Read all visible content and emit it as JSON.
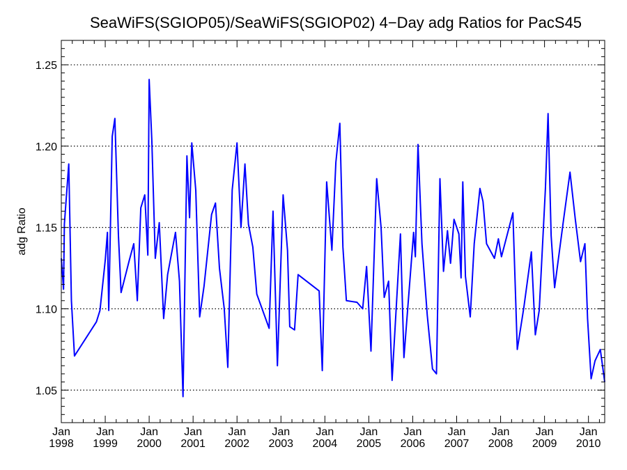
{
  "chart_data": {
    "type": "line",
    "title": "SeaWiFS(SGIOP05)/SeaWiFS(SGIOP02) 4−Day adg Ratios for PacS45",
    "xlabel": "",
    "ylabel": "adg Ratio",
    "xlim": [
      1998.0,
      2010.37
    ],
    "ylim": [
      1.03,
      1.265
    ],
    "yticks": [
      1.05,
      1.1,
      1.15,
      1.2,
      1.25
    ],
    "ytick_labels": [
      "1.05",
      "1.10",
      "1.15",
      "1.20",
      "1.25"
    ],
    "xticks": [
      1998,
      1999,
      2000,
      2001,
      2002,
      2003,
      2004,
      2005,
      2006,
      2007,
      2008,
      2009,
      2010
    ],
    "xtick_month_label": "Jan",
    "xtick_year_labels": [
      "1998",
      "1999",
      "2000",
      "2001",
      "2002",
      "2003",
      "2004",
      "2005",
      "2006",
      "2007",
      "2008",
      "2009",
      "2010"
    ],
    "grid": "horizontal-dotted",
    "series": [
      {
        "color": "#0000ff",
        "points": [
          [
            1998.0,
            1.131
          ],
          [
            1998.05,
            1.112
          ],
          [
            1998.07,
            1.152
          ],
          [
            1998.17,
            1.189
          ],
          [
            1998.23,
            1.105
          ],
          [
            1998.3,
            1.071
          ],
          [
            1998.8,
            1.092
          ],
          [
            1998.88,
            1.099
          ],
          [
            1999.0,
            1.13
          ],
          [
            1999.05,
            1.147
          ],
          [
            1999.08,
            1.099
          ],
          [
            1999.16,
            1.206
          ],
          [
            1999.22,
            1.217
          ],
          [
            1999.3,
            1.145
          ],
          [
            1999.36,
            1.11
          ],
          [
            1999.55,
            1.13
          ],
          [
            1999.65,
            1.14
          ],
          [
            1999.73,
            1.105
          ],
          [
            1999.81,
            1.162
          ],
          [
            1999.9,
            1.17
          ],
          [
            1999.97,
            1.133
          ],
          [
            2000.0,
            1.241
          ],
          [
            2000.06,
            1.204
          ],
          [
            2000.14,
            1.131
          ],
          [
            2000.23,
            1.153
          ],
          [
            2000.33,
            1.094
          ],
          [
            2000.42,
            1.121
          ],
          [
            2000.6,
            1.147
          ],
          [
            2000.69,
            1.117
          ],
          [
            2000.77,
            1.046
          ],
          [
            2000.86,
            1.194
          ],
          [
            2000.92,
            1.156
          ],
          [
            2000.97,
            1.202
          ],
          [
            2001.06,
            1.173
          ],
          [
            2001.15,
            1.095
          ],
          [
            2001.25,
            1.114
          ],
          [
            2001.42,
            1.158
          ],
          [
            2001.51,
            1.165
          ],
          [
            2001.6,
            1.125
          ],
          [
            2001.71,
            1.1
          ],
          [
            2001.79,
            1.064
          ],
          [
            2001.89,
            1.173
          ],
          [
            2002.0,
            1.202
          ],
          [
            2002.09,
            1.15
          ],
          [
            2002.18,
            1.189
          ],
          [
            2002.26,
            1.152
          ],
          [
            2002.36,
            1.138
          ],
          [
            2002.45,
            1.109
          ],
          [
            2002.73,
            1.088
          ],
          [
            2002.82,
            1.16
          ],
          [
            2002.92,
            1.065
          ],
          [
            2003.05,
            1.17
          ],
          [
            2003.15,
            1.136
          ],
          [
            2003.2,
            1.089
          ],
          [
            2003.31,
            1.087
          ],
          [
            2003.39,
            1.121
          ],
          [
            2003.87,
            1.111
          ],
          [
            2003.94,
            1.062
          ],
          [
            2004.04,
            1.178
          ],
          [
            2004.16,
            1.136
          ],
          [
            2004.25,
            1.19
          ],
          [
            2004.34,
            1.214
          ],
          [
            2004.41,
            1.138
          ],
          [
            2004.49,
            1.105
          ],
          [
            2004.73,
            1.104
          ],
          [
            2004.86,
            1.1
          ],
          [
            2004.95,
            1.126
          ],
          [
            2005.05,
            1.074
          ],
          [
            2005.18,
            1.18
          ],
          [
            2005.28,
            1.15
          ],
          [
            2005.35,
            1.107
          ],
          [
            2005.45,
            1.117
          ],
          [
            2005.53,
            1.056
          ],
          [
            2005.72,
            1.146
          ],
          [
            2005.8,
            1.07
          ],
          [
            2006.02,
            1.147
          ],
          [
            2006.06,
            1.132
          ],
          [
            2006.12,
            1.201
          ],
          [
            2006.21,
            1.14
          ],
          [
            2006.33,
            1.096
          ],
          [
            2006.45,
            1.063
          ],
          [
            2006.54,
            1.06
          ],
          [
            2006.62,
            1.18
          ],
          [
            2006.7,
            1.123
          ],
          [
            2006.79,
            1.148
          ],
          [
            2006.86,
            1.128
          ],
          [
            2006.94,
            1.155
          ],
          [
            2007.05,
            1.146
          ],
          [
            2007.1,
            1.119
          ],
          [
            2007.14,
            1.178
          ],
          [
            2007.2,
            1.12
          ],
          [
            2007.31,
            1.095
          ],
          [
            2007.4,
            1.14
          ],
          [
            2007.53,
            1.174
          ],
          [
            2007.6,
            1.166
          ],
          [
            2007.68,
            1.14
          ],
          [
            2007.86,
            1.131
          ],
          [
            2007.95,
            1.143
          ],
          [
            2008.02,
            1.132
          ],
          [
            2008.28,
            1.159
          ],
          [
            2008.38,
            1.075
          ],
          [
            2008.53,
            1.101
          ],
          [
            2008.7,
            1.135
          ],
          [
            2008.79,
            1.084
          ],
          [
            2008.88,
            1.099
          ],
          [
            2009.02,
            1.174
          ],
          [
            2009.08,
            1.22
          ],
          [
            2009.15,
            1.145
          ],
          [
            2009.23,
            1.113
          ],
          [
            2009.43,
            1.154
          ],
          [
            2009.58,
            1.184
          ],
          [
            2009.7,
            1.155
          ],
          [
            2009.82,
            1.129
          ],
          [
            2009.92,
            1.14
          ],
          [
            2009.98,
            1.094
          ],
          [
            2010.06,
            1.057
          ],
          [
            2010.15,
            1.068
          ],
          [
            2010.27,
            1.075
          ],
          [
            2010.37,
            1.055
          ]
        ]
      }
    ]
  }
}
